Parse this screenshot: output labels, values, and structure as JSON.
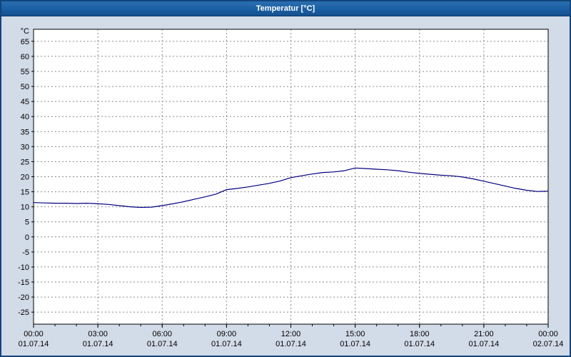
{
  "window": {
    "title": "Temperatur [°C]"
  },
  "chart_data": {
    "type": "line",
    "title": "Temperatur [°C]",
    "y_unit_label": "°C",
    "ylim": [
      -29,
      69
    ],
    "yticks": {
      "min": -25,
      "max": 65,
      "step": 5
    },
    "xlim_hours": [
      0,
      24
    ],
    "minor_tick_every_hours": 1,
    "grid": true,
    "legend": false,
    "x_ticks": [
      {
        "hour": 0,
        "time": "00:00",
        "date": "01.07.14"
      },
      {
        "hour": 3,
        "time": "03:00",
        "date": "01.07.14"
      },
      {
        "hour": 6,
        "time": "06:00",
        "date": "01.07.14"
      },
      {
        "hour": 9,
        "time": "09:00",
        "date": "01.07.14"
      },
      {
        "hour": 12,
        "time": "12:00",
        "date": "01.07.14"
      },
      {
        "hour": 15,
        "time": "15:00",
        "date": "01.07.14"
      },
      {
        "hour": 18,
        "time": "18:00",
        "date": "01.07.14"
      },
      {
        "hour": 21,
        "time": "21:00",
        "date": "01.07.14"
      },
      {
        "hour": 24,
        "time": "00:00",
        "date": "02.07.14"
      }
    ],
    "series": [
      {
        "name": "Temperatur",
        "x_hours": [
          0,
          0.5,
          1,
          1.5,
          2,
          2.5,
          3,
          3.5,
          4,
          4.5,
          5,
          5.5,
          6,
          6.5,
          7,
          7.5,
          8,
          8.5,
          9,
          9.5,
          10,
          10.5,
          11,
          11.5,
          12,
          12.5,
          13,
          13.5,
          14,
          14.5,
          15,
          15.5,
          16,
          16.5,
          17,
          17.5,
          18,
          18.5,
          19,
          19.5,
          20,
          20.5,
          21,
          21.5,
          22,
          22.5,
          23,
          23.5,
          24
        ],
        "values": [
          11.4,
          11.3,
          11.2,
          11.2,
          11.1,
          11.2,
          11.0,
          10.8,
          10.4,
          10.0,
          9.8,
          9.9,
          10.4,
          11.0,
          11.7,
          12.5,
          13.3,
          14.2,
          15.7,
          16.1,
          16.6,
          17.2,
          17.8,
          18.6,
          19.7,
          20.3,
          20.9,
          21.4,
          21.6,
          22.0,
          22.9,
          22.7,
          22.5,
          22.3,
          22.0,
          21.5,
          21.1,
          20.8,
          20.5,
          20.3,
          19.9,
          19.3,
          18.5,
          17.7,
          16.9,
          16.1,
          15.5,
          15.1,
          15.2
        ]
      }
    ],
    "colors": {
      "line": "#000080",
      "grid": "#8a8a8a",
      "axis": "#000000",
      "plot_background": "#ffffff",
      "title_bar": "#1a5fa4",
      "window_background": "#d2dbe8",
      "window_border": "#12457e"
    }
  }
}
